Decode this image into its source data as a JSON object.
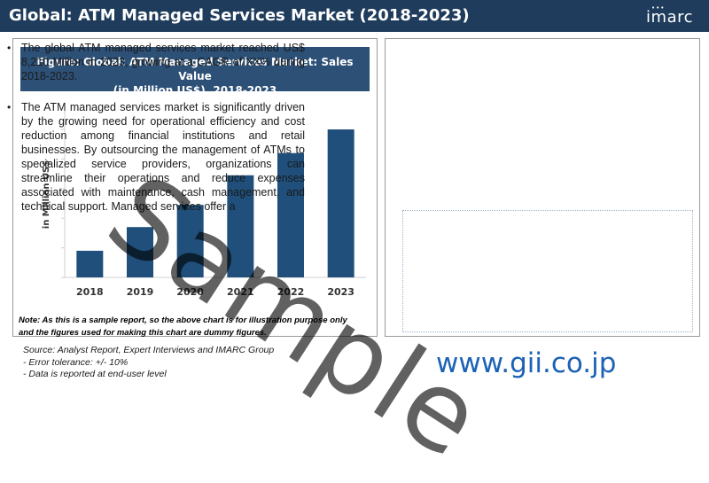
{
  "header": {
    "title": "Global: ATM Managed Services Market (2018-2023)",
    "logo_text": "imarc",
    "logo_dots": "•••"
  },
  "figure": {
    "title_line1": "Figure: Global: ATM Managed Services Market: Sales Value",
    "title_line2": "(in Million US$), 2018-2023"
  },
  "chart_data": {
    "type": "bar",
    "categories": [
      "2018",
      "2019",
      "2020",
      "2021",
      "2022",
      "2023"
    ],
    "values": [
      18,
      34,
      49,
      69,
      84,
      100
    ],
    "ylabel": "in Million US$",
    "xlabel": "",
    "ylim": [
      0,
      112
    ],
    "yticks": [
      0,
      20,
      40,
      60,
      80,
      100
    ],
    "grid": false,
    "bar_color": "#1f4f7a"
  },
  "note": {
    "line1": "Note: As this is a sample report, so the above chart is for illustration purpose only",
    "line2": "and the figures used for making this chart are dummy figures."
  },
  "bullets": [
    {
      "symbol": "•",
      "text": "The global ATM managed services market reached US$ 8,210 Million in 2023, growing at a CAGR of XX% during 2018-2023."
    },
    {
      "symbol": "•",
      "text": "The ATM managed services market is significantly driven by the growing need for operational efficiency and cost reduction among financial institutions and retail businesses. By outsourcing the management of ATMs to specialized service providers, organizations can streamline their operations and reduce expenses associated with maintenance, cash management, and technical support. Managed services offer a"
    }
  ],
  "sources": {
    "line1": "Source: Analyst Report, Expert Interviews and IMARC Group",
    "line2": "- Error tolerance: +/- 10%",
    "line3": "- Data is reported at end-user level"
  },
  "watermark": {
    "sample": "Sample",
    "site": "www.gii.co.jp"
  },
  "colors": {
    "header_bg": "#1f3c5c",
    "figure_title_bg": "#2d5076",
    "bar": "#1f4f7a",
    "watermark_link": "#1c62b5"
  }
}
